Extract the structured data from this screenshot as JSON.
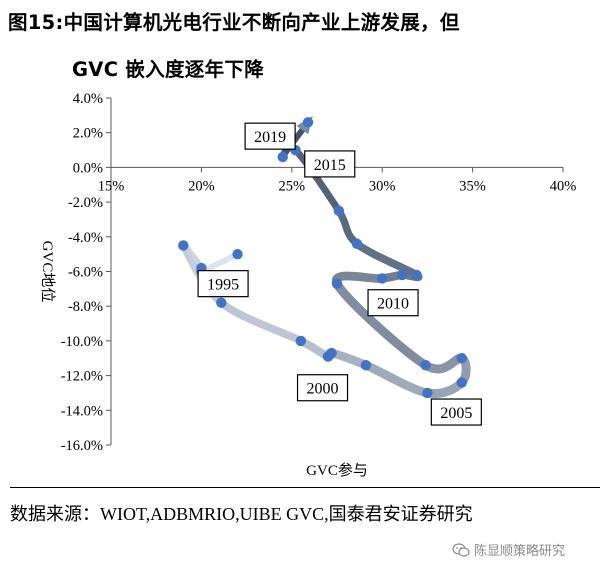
{
  "title": {
    "line1": "图15:中国计算机光电行业不断向产业上游发展，但",
    "line2": "GVC 嵌入度逐年下降"
  },
  "source": "数据来源：WIOT,ADBMRIO,UIBE GVC,国泰君安证券研究",
  "watermark": "陈显顺策略研究",
  "watermark_icon": "wechat-icon",
  "chart_data": {
    "type": "scatter",
    "xlabel": "GVC参与",
    "ylabel": "GVC地位",
    "xlim": [
      0.15,
      0.4
    ],
    "ylim": [
      -0.16,
      0.04
    ],
    "x_ticks": [
      0.15,
      0.2,
      0.25,
      0.3,
      0.35,
      0.4
    ],
    "x_tick_labels": [
      "15%",
      "20%",
      "25%",
      "30%",
      "35%",
      "40%"
    ],
    "y_ticks": [
      0.04,
      0.02,
      0.0,
      -0.02,
      -0.04,
      -0.06,
      -0.08,
      -0.1,
      -0.12,
      -0.14,
      -0.16
    ],
    "y_tick_labels": [
      "4.0%",
      "2.0%",
      "0.0%",
      "-2.0%",
      "-4.0%",
      "-6.0%",
      "-8.0%",
      "-10.0%",
      "-12.0%",
      "-14.0%",
      "-16.0%"
    ],
    "colors": {
      "point": "#4472C4",
      "path_light": "#DCE3EE",
      "path_dark": "#44546A"
    },
    "points": [
      {
        "x": 0.22,
        "y": -0.05
      },
      {
        "x": 0.2,
        "y": -0.06
      },
      {
        "x": 0.2,
        "y": -0.058
      },
      {
        "x": 0.19,
        "y": -0.045
      },
      {
        "x": 0.211,
        "y": -0.078
      },
      {
        "x": 0.255,
        "y": -0.1
      },
      {
        "x": 0.27,
        "y": -0.109
      },
      {
        "x": 0.272,
        "y": -0.107
      },
      {
        "x": 0.291,
        "y": -0.114
      },
      {
        "x": 0.325,
        "y": -0.13
      },
      {
        "x": 0.344,
        "y": -0.124
      },
      {
        "x": 0.344,
        "y": -0.11
      },
      {
        "x": 0.324,
        "y": -0.114
      },
      {
        "x": 0.275,
        "y": -0.067
      },
      {
        "x": 0.3,
        "y": -0.064
      },
      {
        "x": 0.311,
        "y": -0.062
      },
      {
        "x": 0.319,
        "y": -0.062
      },
      {
        "x": 0.286,
        "y": -0.044
      },
      {
        "x": 0.276,
        "y": -0.025
      },
      {
        "x": 0.252,
        "y": 0.01
      },
      {
        "x": 0.245,
        "y": 0.006
      },
      {
        "x": 0.259,
        "y": 0.026
      }
    ],
    "annotations": [
      {
        "text": "1995",
        "x": 0.212,
        "y": -0.067
      },
      {
        "text": "2000",
        "x": 0.267,
        "y": -0.127
      },
      {
        "text": "2005",
        "x": 0.341,
        "y": -0.141
      },
      {
        "text": "2010",
        "x": 0.306,
        "y": -0.078
      },
      {
        "text": "2015",
        "x": 0.271,
        "y": 0.002
      },
      {
        "text": "2019",
        "x": 0.238,
        "y": 0.018
      }
    ]
  }
}
